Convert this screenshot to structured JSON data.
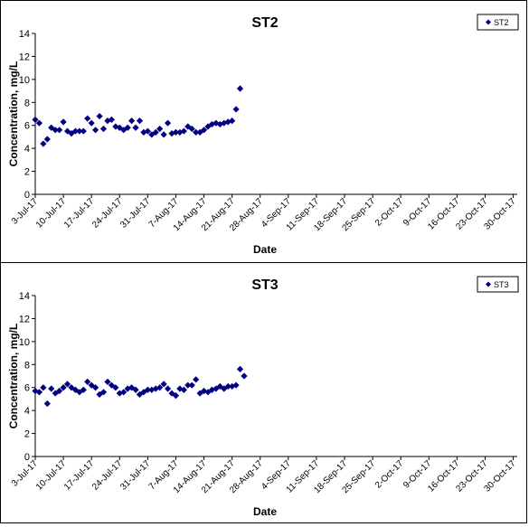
{
  "chart_data": [
    {
      "type": "scatter",
      "title": "ST2",
      "xlabel": "Date",
      "ylabel": "Concentration, mg/L",
      "ylim": [
        0,
        14
      ],
      "yticks": [
        "0",
        "2",
        "4",
        "6",
        "8",
        "10",
        "12",
        "14"
      ],
      "xticks": [
        "3-Jul-17",
        "10-Jul-17",
        "17-Jul-17",
        "24-Jul-17",
        "31-Jul-17",
        "7-Aug-17",
        "14-Aug-17",
        "21-Aug-17",
        "28-Aug-17",
        "4-Sep-17",
        "11-Sep-17",
        "18-Sep-17",
        "25-Sep-17",
        "2-Oct-17",
        "9-Oct-17",
        "16-Oct-17",
        "23-Oct-17",
        "30-Oct-17"
      ],
      "xlim": [
        "2017-07-03",
        "2017-10-31"
      ],
      "grid": false,
      "legend_position": "top-right",
      "series": [
        {
          "name": "ST2",
          "color": "#000080",
          "marker": "diamond",
          "points": [
            {
              "x": "2017-07-03",
              "y": 6.5
            },
            {
              "x": "2017-07-04",
              "y": 6.2
            },
            {
              "x": "2017-07-05",
              "y": 4.4
            },
            {
              "x": "2017-07-06",
              "y": 4.8
            },
            {
              "x": "2017-07-07",
              "y": 5.8
            },
            {
              "x": "2017-07-08",
              "y": 5.6
            },
            {
              "x": "2017-07-09",
              "y": 5.6
            },
            {
              "x": "2017-07-10",
              "y": 6.3
            },
            {
              "x": "2017-07-11",
              "y": 5.5
            },
            {
              "x": "2017-07-12",
              "y": 5.3
            },
            {
              "x": "2017-07-13",
              "y": 5.5
            },
            {
              "x": "2017-07-14",
              "y": 5.5
            },
            {
              "x": "2017-07-15",
              "y": 5.5
            },
            {
              "x": "2017-07-16",
              "y": 6.6
            },
            {
              "x": "2017-07-17",
              "y": 6.2
            },
            {
              "x": "2017-07-18",
              "y": 5.6
            },
            {
              "x": "2017-07-19",
              "y": 6.8
            },
            {
              "x": "2017-07-20",
              "y": 5.7
            },
            {
              "x": "2017-07-21",
              "y": 6.4
            },
            {
              "x": "2017-07-22",
              "y": 6.5
            },
            {
              "x": "2017-07-23",
              "y": 5.9
            },
            {
              "x": "2017-07-24",
              "y": 5.8
            },
            {
              "x": "2017-07-25",
              "y": 5.6
            },
            {
              "x": "2017-07-26",
              "y": 5.8
            },
            {
              "x": "2017-07-27",
              "y": 6.4
            },
            {
              "x": "2017-07-28",
              "y": 5.8
            },
            {
              "x": "2017-07-29",
              "y": 6.4
            },
            {
              "x": "2017-07-30",
              "y": 5.4
            },
            {
              "x": "2017-07-31",
              "y": 5.5
            },
            {
              "x": "2017-08-01",
              "y": 5.2
            },
            {
              "x": "2017-08-02",
              "y": 5.4
            },
            {
              "x": "2017-08-03",
              "y": 5.7
            },
            {
              "x": "2017-08-04",
              "y": 5.2
            },
            {
              "x": "2017-08-05",
              "y": 6.2
            },
            {
              "x": "2017-08-06",
              "y": 5.3
            },
            {
              "x": "2017-08-07",
              "y": 5.4
            },
            {
              "x": "2017-08-08",
              "y": 5.4
            },
            {
              "x": "2017-08-09",
              "y": 5.5
            },
            {
              "x": "2017-08-10",
              "y": 5.9
            },
            {
              "x": "2017-08-11",
              "y": 5.7
            },
            {
              "x": "2017-08-12",
              "y": 5.4
            },
            {
              "x": "2017-08-13",
              "y": 5.4
            },
            {
              "x": "2017-08-14",
              "y": 5.6
            },
            {
              "x": "2017-08-15",
              "y": 5.9
            },
            {
              "x": "2017-08-16",
              "y": 6.1
            },
            {
              "x": "2017-08-17",
              "y": 6.2
            },
            {
              "x": "2017-08-18",
              "y": 6.1
            },
            {
              "x": "2017-08-19",
              "y": 6.2
            },
            {
              "x": "2017-08-20",
              "y": 6.3
            },
            {
              "x": "2017-08-21",
              "y": 6.4
            },
            {
              "x": "2017-08-22",
              "y": 7.4
            },
            {
              "x": "2017-08-23",
              "y": 9.2
            }
          ]
        }
      ]
    },
    {
      "type": "scatter",
      "title": "ST3",
      "xlabel": "Date",
      "ylabel": "Concentration, mg/L",
      "ylim": [
        0,
        14
      ],
      "yticks": [
        "0",
        "2",
        "4",
        "6",
        "8",
        "10",
        "12",
        "14"
      ],
      "xticks": [
        "3-Jul-17",
        "10-Jul-17",
        "17-Jul-17",
        "24-Jul-17",
        "31-Jul-17",
        "7-Aug-17",
        "14-Aug-17",
        "21-Aug-17",
        "28-Aug-17",
        "4-Sep-17",
        "11-Sep-17",
        "18-Sep-17",
        "25-Sep-17",
        "2-Oct-17",
        "9-Oct-17",
        "16-Oct-17",
        "23-Oct-17",
        "30-Oct-17"
      ],
      "xlim": [
        "2017-07-03",
        "2017-10-31"
      ],
      "grid": false,
      "legend_position": "top-right",
      "series": [
        {
          "name": "ST3",
          "color": "#000080",
          "marker": "diamond",
          "points": [
            {
              "x": "2017-07-03",
              "y": 5.7
            },
            {
              "x": "2017-07-04",
              "y": 5.6
            },
            {
              "x": "2017-07-05",
              "y": 6.0
            },
            {
              "x": "2017-07-06",
              "y": 4.6
            },
            {
              "x": "2017-07-07",
              "y": 5.9
            },
            {
              "x": "2017-07-08",
              "y": 5.5
            },
            {
              "x": "2017-07-09",
              "y": 5.7
            },
            {
              "x": "2017-07-10",
              "y": 6.0
            },
            {
              "x": "2017-07-11",
              "y": 6.3
            },
            {
              "x": "2017-07-12",
              "y": 6.0
            },
            {
              "x": "2017-07-13",
              "y": 5.8
            },
            {
              "x": "2017-07-14",
              "y": 5.6
            },
            {
              "x": "2017-07-15",
              "y": 5.8
            },
            {
              "x": "2017-07-16",
              "y": 6.5
            },
            {
              "x": "2017-07-17",
              "y": 6.2
            },
            {
              "x": "2017-07-18",
              "y": 6.0
            },
            {
              "x": "2017-07-19",
              "y": 5.4
            },
            {
              "x": "2017-07-20",
              "y": 5.6
            },
            {
              "x": "2017-07-21",
              "y": 6.5
            },
            {
              "x": "2017-07-22",
              "y": 6.2
            },
            {
              "x": "2017-07-23",
              "y": 6.0
            },
            {
              "x": "2017-07-24",
              "y": 5.5
            },
            {
              "x": "2017-07-25",
              "y": 5.6
            },
            {
              "x": "2017-07-26",
              "y": 5.9
            },
            {
              "x": "2017-07-27",
              "y": 6.0
            },
            {
              "x": "2017-07-28",
              "y": 5.8
            },
            {
              "x": "2017-07-29",
              "y": 5.4
            },
            {
              "x": "2017-07-30",
              "y": 5.6
            },
            {
              "x": "2017-07-31",
              "y": 5.8
            },
            {
              "x": "2017-08-01",
              "y": 5.8
            },
            {
              "x": "2017-08-02",
              "y": 5.9
            },
            {
              "x": "2017-08-03",
              "y": 6.0
            },
            {
              "x": "2017-08-04",
              "y": 6.3
            },
            {
              "x": "2017-08-05",
              "y": 5.9
            },
            {
              "x": "2017-08-06",
              "y": 5.5
            },
            {
              "x": "2017-08-07",
              "y": 5.3
            },
            {
              "x": "2017-08-08",
              "y": 5.9
            },
            {
              "x": "2017-08-09",
              "y": 5.8
            },
            {
              "x": "2017-08-10",
              "y": 6.2
            },
            {
              "x": "2017-08-11",
              "y": 6.2
            },
            {
              "x": "2017-08-12",
              "y": 6.7
            },
            {
              "x": "2017-08-13",
              "y": 5.5
            },
            {
              "x": "2017-08-14",
              "y": 5.7
            },
            {
              "x": "2017-08-15",
              "y": 5.6
            },
            {
              "x": "2017-08-16",
              "y": 5.8
            },
            {
              "x": "2017-08-17",
              "y": 5.9
            },
            {
              "x": "2017-08-18",
              "y": 6.1
            },
            {
              "x": "2017-08-19",
              "y": 5.9
            },
            {
              "x": "2017-08-20",
              "y": 6.1
            },
            {
              "x": "2017-08-21",
              "y": 6.1
            },
            {
              "x": "2017-08-22",
              "y": 6.2
            },
            {
              "x": "2017-08-23",
              "y": 7.6
            },
            {
              "x": "2017-08-24",
              "y": 7.0
            }
          ]
        }
      ]
    }
  ]
}
